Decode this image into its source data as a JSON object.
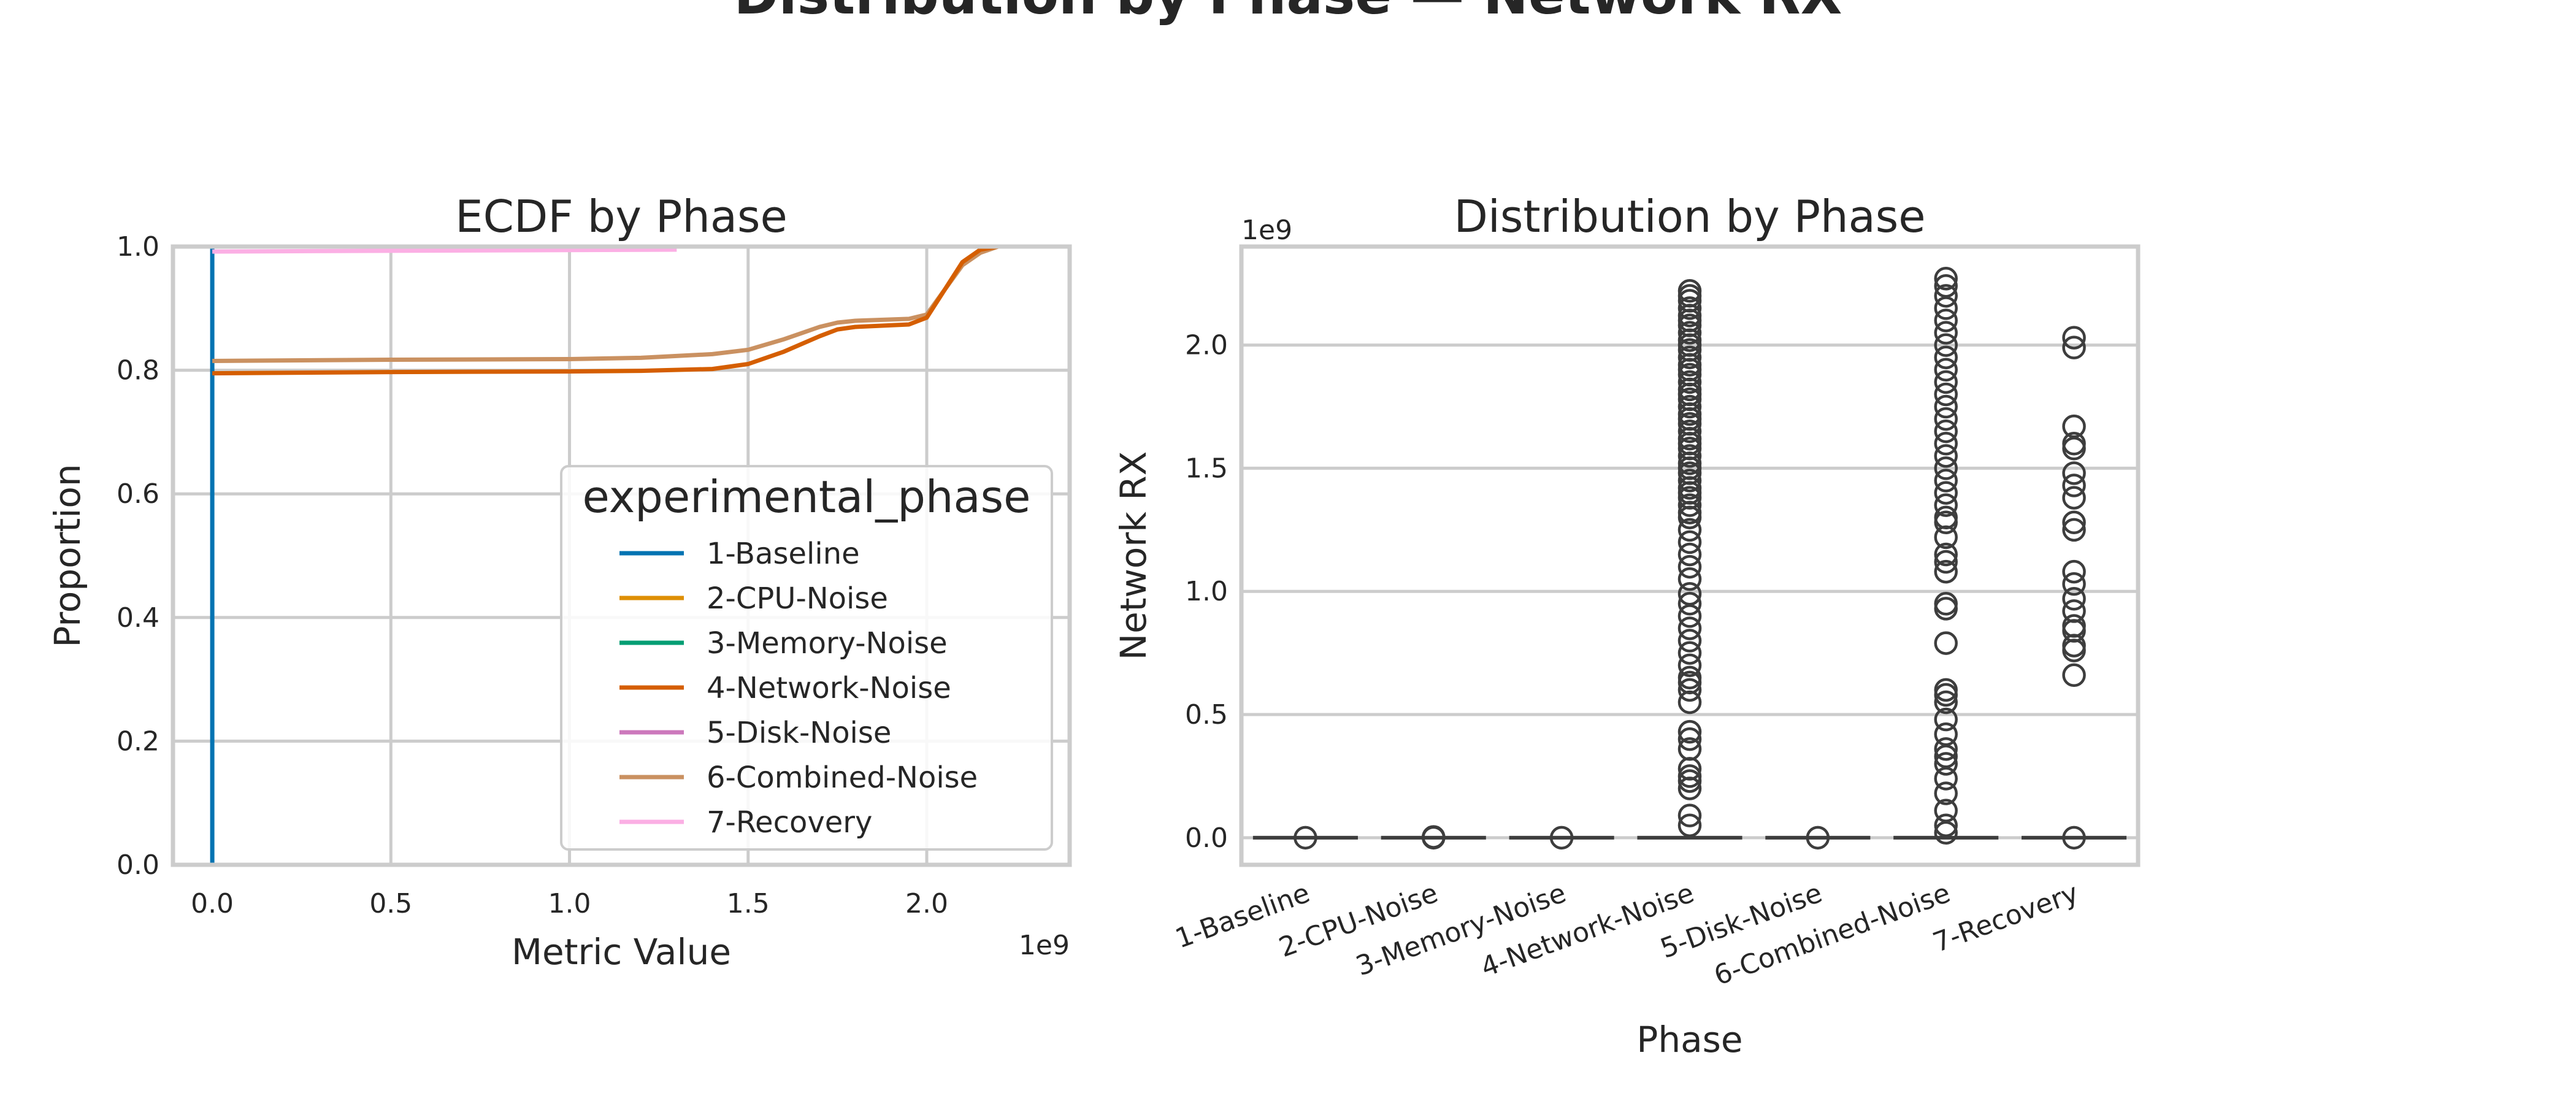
{
  "figure": {
    "title": "Distribution by Phase — Network RX"
  },
  "colors": {
    "1-Baseline": "#0173b2",
    "2-CPU-Noise": "#de8f05",
    "3-Memory-Noise": "#029e73",
    "4-Network-Noise": "#d55e00",
    "5-Disk-Noise": "#cc78bc",
    "6-Combined-Noise": "#ca9161",
    "7-Recovery": "#fbafe4",
    "grid": "#cccccc",
    "spine": "#cccccc",
    "box_edge": "#3d3d3d"
  },
  "chart_data": [
    {
      "type": "line",
      "subtype": "ecdf",
      "title": "ECDF by Phase",
      "xlabel": "Metric Value",
      "ylabel": "Proportion",
      "x_scale_label": "1e9",
      "xlim": [
        -0.11,
        2.4
      ],
      "ylim": [
        0,
        1
      ],
      "x_ticks": [
        0.0,
        0.5,
        1.0,
        1.5,
        2.0
      ],
      "x_tick_labels": [
        "0.0",
        "0.5",
        "1.0",
        "1.5",
        "2.0"
      ],
      "y_ticks": [
        0.0,
        0.2,
        0.4,
        0.6,
        0.8,
        1.0
      ],
      "y_tick_labels": [
        "0.0",
        "0.2",
        "0.4",
        "0.6",
        "0.8",
        "1.0"
      ],
      "grid": true,
      "legend": {
        "title": "experimental_phase",
        "placement": "lower-right",
        "entries": [
          "1-Baseline",
          "2-CPU-Noise",
          "3-Memory-Noise",
          "4-Network-Noise",
          "5-Disk-Noise",
          "6-Combined-Noise",
          "7-Recovery"
        ]
      },
      "series": [
        {
          "name": "1-Baseline",
          "points": [
            [
              0,
              0
            ],
            [
              0,
              1.0
            ]
          ]
        },
        {
          "name": "7-Recovery",
          "points": [
            [
              0,
              0.992
            ],
            [
              1.3,
              0.995
            ]
          ]
        },
        {
          "name": "6-Combined-Noise",
          "points": [
            [
              0,
              0.815
            ],
            [
              0.5,
              0.817
            ],
            [
              1.0,
              0.818
            ],
            [
              1.2,
              0.82
            ],
            [
              1.4,
              0.826
            ],
            [
              1.5,
              0.833
            ],
            [
              1.6,
              0.85
            ],
            [
              1.7,
              0.87
            ],
            [
              1.75,
              0.877
            ],
            [
              1.8,
              0.88
            ],
            [
              1.95,
              0.883
            ],
            [
              2.0,
              0.89
            ],
            [
              2.05,
              0.93
            ],
            [
              2.1,
              0.97
            ],
            [
              2.15,
              0.99
            ],
            [
              2.2,
              1.0
            ],
            [
              2.25,
              1.0
            ]
          ]
        },
        {
          "name": "4-Network-Noise",
          "points": [
            [
              0,
              0.795
            ],
            [
              0.5,
              0.797
            ],
            [
              1.0,
              0.798
            ],
            [
              1.2,
              0.799
            ],
            [
              1.4,
              0.802
            ],
            [
              1.5,
              0.81
            ],
            [
              1.6,
              0.83
            ],
            [
              1.7,
              0.855
            ],
            [
              1.75,
              0.866
            ],
            [
              1.8,
              0.87
            ],
            [
              1.95,
              0.874
            ],
            [
              2.0,
              0.885
            ],
            [
              2.05,
              0.93
            ],
            [
              2.1,
              0.975
            ],
            [
              2.15,
              0.995
            ],
            [
              2.2,
              1.0
            ],
            [
              2.25,
              1.0
            ]
          ]
        }
      ]
    },
    {
      "type": "box",
      "title": "Distribution by Phase",
      "xlabel": "Phase",
      "ylabel": "Network RX",
      "y_scale_label": "1e9",
      "ylim": [
        -0.11,
        2.4
      ],
      "y_ticks": [
        0.0,
        0.5,
        1.0,
        1.5,
        2.0
      ],
      "y_tick_labels": [
        "0.0",
        "0.5",
        "1.0",
        "1.5",
        "2.0"
      ],
      "grid": true,
      "categories": [
        "1-Baseline",
        "2-CPU-Noise",
        "3-Memory-Noise",
        "4-Network-Noise",
        "5-Disk-Noise",
        "6-Combined-Noise",
        "7-Recovery"
      ],
      "boxes": [
        {
          "median": 0,
          "q1": 0,
          "q3": 0,
          "whisker_low": 0,
          "whisker_high": 0
        },
        {
          "median": 0,
          "q1": 0,
          "q3": 0,
          "whisker_low": 0,
          "whisker_high": 0
        },
        {
          "median": 0,
          "q1": 0,
          "q3": 0,
          "whisker_low": 0,
          "whisker_high": 0
        },
        {
          "median": 0,
          "q1": 0,
          "q3": 0,
          "whisker_low": 0,
          "whisker_high": 0
        },
        {
          "median": 0,
          "q1": 0,
          "q3": 0,
          "whisker_low": 0,
          "whisker_high": 0
        },
        {
          "median": 0,
          "q1": 0,
          "q3": 0,
          "whisker_low": 0,
          "whisker_high": 0
        },
        {
          "median": 0,
          "q1": 0,
          "q3": 0,
          "whisker_low": 0,
          "whisker_high": 0
        }
      ],
      "outliers": [
        [
          0.0
        ],
        [
          0.0,
          0.003
        ],
        [
          0.0
        ],
        [
          0.05,
          0.09,
          0.2,
          0.23,
          0.25,
          0.28,
          0.36,
          0.4,
          0.43,
          0.55,
          0.6,
          0.63,
          0.65,
          0.7,
          0.75,
          0.8,
          0.85,
          0.9,
          0.95,
          0.99,
          1.05,
          1.1,
          1.15,
          1.2,
          1.25,
          1.3,
          1.32,
          1.35,
          1.38,
          1.4,
          1.42,
          1.45,
          1.48,
          1.5,
          1.52,
          1.55,
          1.58,
          1.6,
          1.62,
          1.65,
          1.68,
          1.7,
          1.72,
          1.75,
          1.78,
          1.8,
          1.82,
          1.85,
          1.88,
          1.9,
          1.92,
          1.95,
          1.98,
          2.0,
          2.02,
          2.05,
          2.08,
          2.1,
          2.12,
          2.15,
          2.18,
          2.2,
          2.22
        ],
        [
          0.0
        ],
        [
          0.02,
          0.05,
          0.11,
          0.18,
          0.24,
          0.3,
          0.33,
          0.36,
          0.42,
          0.48,
          0.55,
          0.58,
          0.6,
          0.79,
          0.93,
          0.95,
          1.08,
          1.12,
          1.15,
          1.22,
          1.28,
          1.3,
          1.35,
          1.4,
          1.45,
          1.5,
          1.55,
          1.6,
          1.65,
          1.7,
          1.75,
          1.8,
          1.85,
          1.9,
          1.95,
          2.0,
          2.05,
          2.1,
          2.15,
          2.2,
          2.24,
          2.27
        ],
        [
          0.0,
          0.66,
          0.76,
          0.78,
          0.84,
          0.86,
          0.92,
          0.97,
          1.03,
          1.08,
          1.25,
          1.28,
          1.38,
          1.43,
          1.48,
          1.58,
          1.6,
          1.67,
          1.99,
          2.03
        ]
      ]
    }
  ]
}
